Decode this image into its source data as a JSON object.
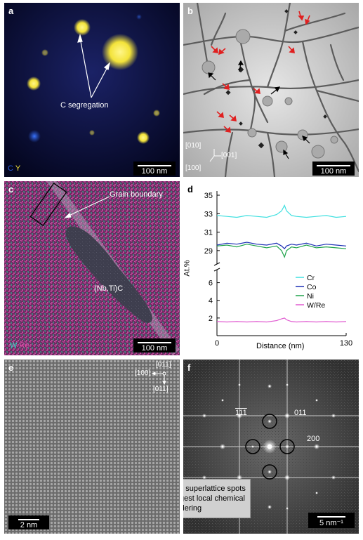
{
  "panels": {
    "a": {
      "label": "a",
      "annotation": "C segregation",
      "legend_c": "C",
      "legend_y": "Y",
      "scale": "100 nm",
      "colors": {
        "c": "#2a5bd7",
        "y": "#f3e33a"
      }
    },
    "b": {
      "label": "b",
      "axis_010": "[010]",
      "axis_001": "[001]",
      "axis_100": "[100]",
      "scale": "100 nm"
    },
    "c": {
      "label": "c",
      "annotation": "Grain boundary",
      "precipitate": "(Nb,Ti)C",
      "legend_w": "W",
      "legend_re": "Re",
      "scale": "100 nm",
      "colors": {
        "w": "#3fd8c8",
        "re": "#e04aa8"
      }
    },
    "d": {
      "label": "d",
      "ylabel": "At.%",
      "xlabel": "Distance (nm)"
    },
    "e": {
      "label": "e",
      "dir_011": "[011]",
      "dir_100": "[100]",
      "dir_01bar1": "[011]",
      "scale": "2 nm"
    },
    "f": {
      "label": "f",
      "spot_111": "111",
      "spot_011": "011",
      "spot_200": "200",
      "note": "No evidence for superlattice spots that would suggest local chemical ordering",
      "scale": "5 nm⁻¹"
    }
  },
  "chart_data": {
    "type": "line",
    "x_range": [
      0,
      130
    ],
    "xticks": [
      "0",
      "130"
    ],
    "upper_yticks": [
      "35",
      "33",
      "31",
      "29"
    ],
    "lower_yticks": [
      "6",
      "4",
      "2"
    ],
    "upper_ylim": [
      28,
      35
    ],
    "lower_ylim": [
      0,
      7
    ],
    "y_break": true,
    "legend_position": "right",
    "series": [
      {
        "name": "Cr",
        "color": "#3fe0e0",
        "x": [
          0,
          10,
          20,
          30,
          40,
          50,
          60,
          65,
          68,
          70,
          75,
          80,
          90,
          100,
          110,
          120,
          130
        ],
        "values": [
          32.8,
          32.7,
          32.6,
          32.8,
          32.7,
          32.6,
          32.9,
          33.3,
          33.9,
          33.3,
          32.8,
          32.7,
          32.6,
          32.7,
          32.8,
          32.6,
          32.7
        ]
      },
      {
        "name": "Co",
        "color": "#1c2fb5",
        "x": [
          0,
          10,
          20,
          30,
          40,
          50,
          60,
          65,
          68,
          70,
          75,
          80,
          90,
          100,
          110,
          120,
          130
        ],
        "values": [
          29.6,
          29.8,
          29.7,
          29.9,
          29.7,
          29.6,
          29.8,
          29.5,
          29.2,
          29.5,
          29.7,
          29.6,
          29.8,
          29.5,
          29.7,
          29.6,
          29.5
        ]
      },
      {
        "name": "Ni",
        "color": "#1fa34a",
        "x": [
          0,
          10,
          20,
          30,
          40,
          50,
          60,
          65,
          68,
          70,
          75,
          80,
          90,
          100,
          110,
          120,
          130
        ],
        "values": [
          29.5,
          29.6,
          29.4,
          29.7,
          29.5,
          29.3,
          29.5,
          29.0,
          28.3,
          29.0,
          29.4,
          29.3,
          29.6,
          29.3,
          29.4,
          29.3,
          29.2
        ]
      },
      {
        "name": "W/Re",
        "color": "#e05ad0",
        "x": [
          0,
          10,
          20,
          30,
          40,
          50,
          60,
          65,
          68,
          70,
          75,
          80,
          90,
          100,
          110,
          120,
          130
        ],
        "values": [
          1.6,
          1.55,
          1.6,
          1.55,
          1.6,
          1.55,
          1.7,
          1.9,
          2.0,
          1.8,
          1.6,
          1.55,
          1.6,
          1.55,
          1.6,
          1.55,
          1.6
        ]
      }
    ]
  }
}
